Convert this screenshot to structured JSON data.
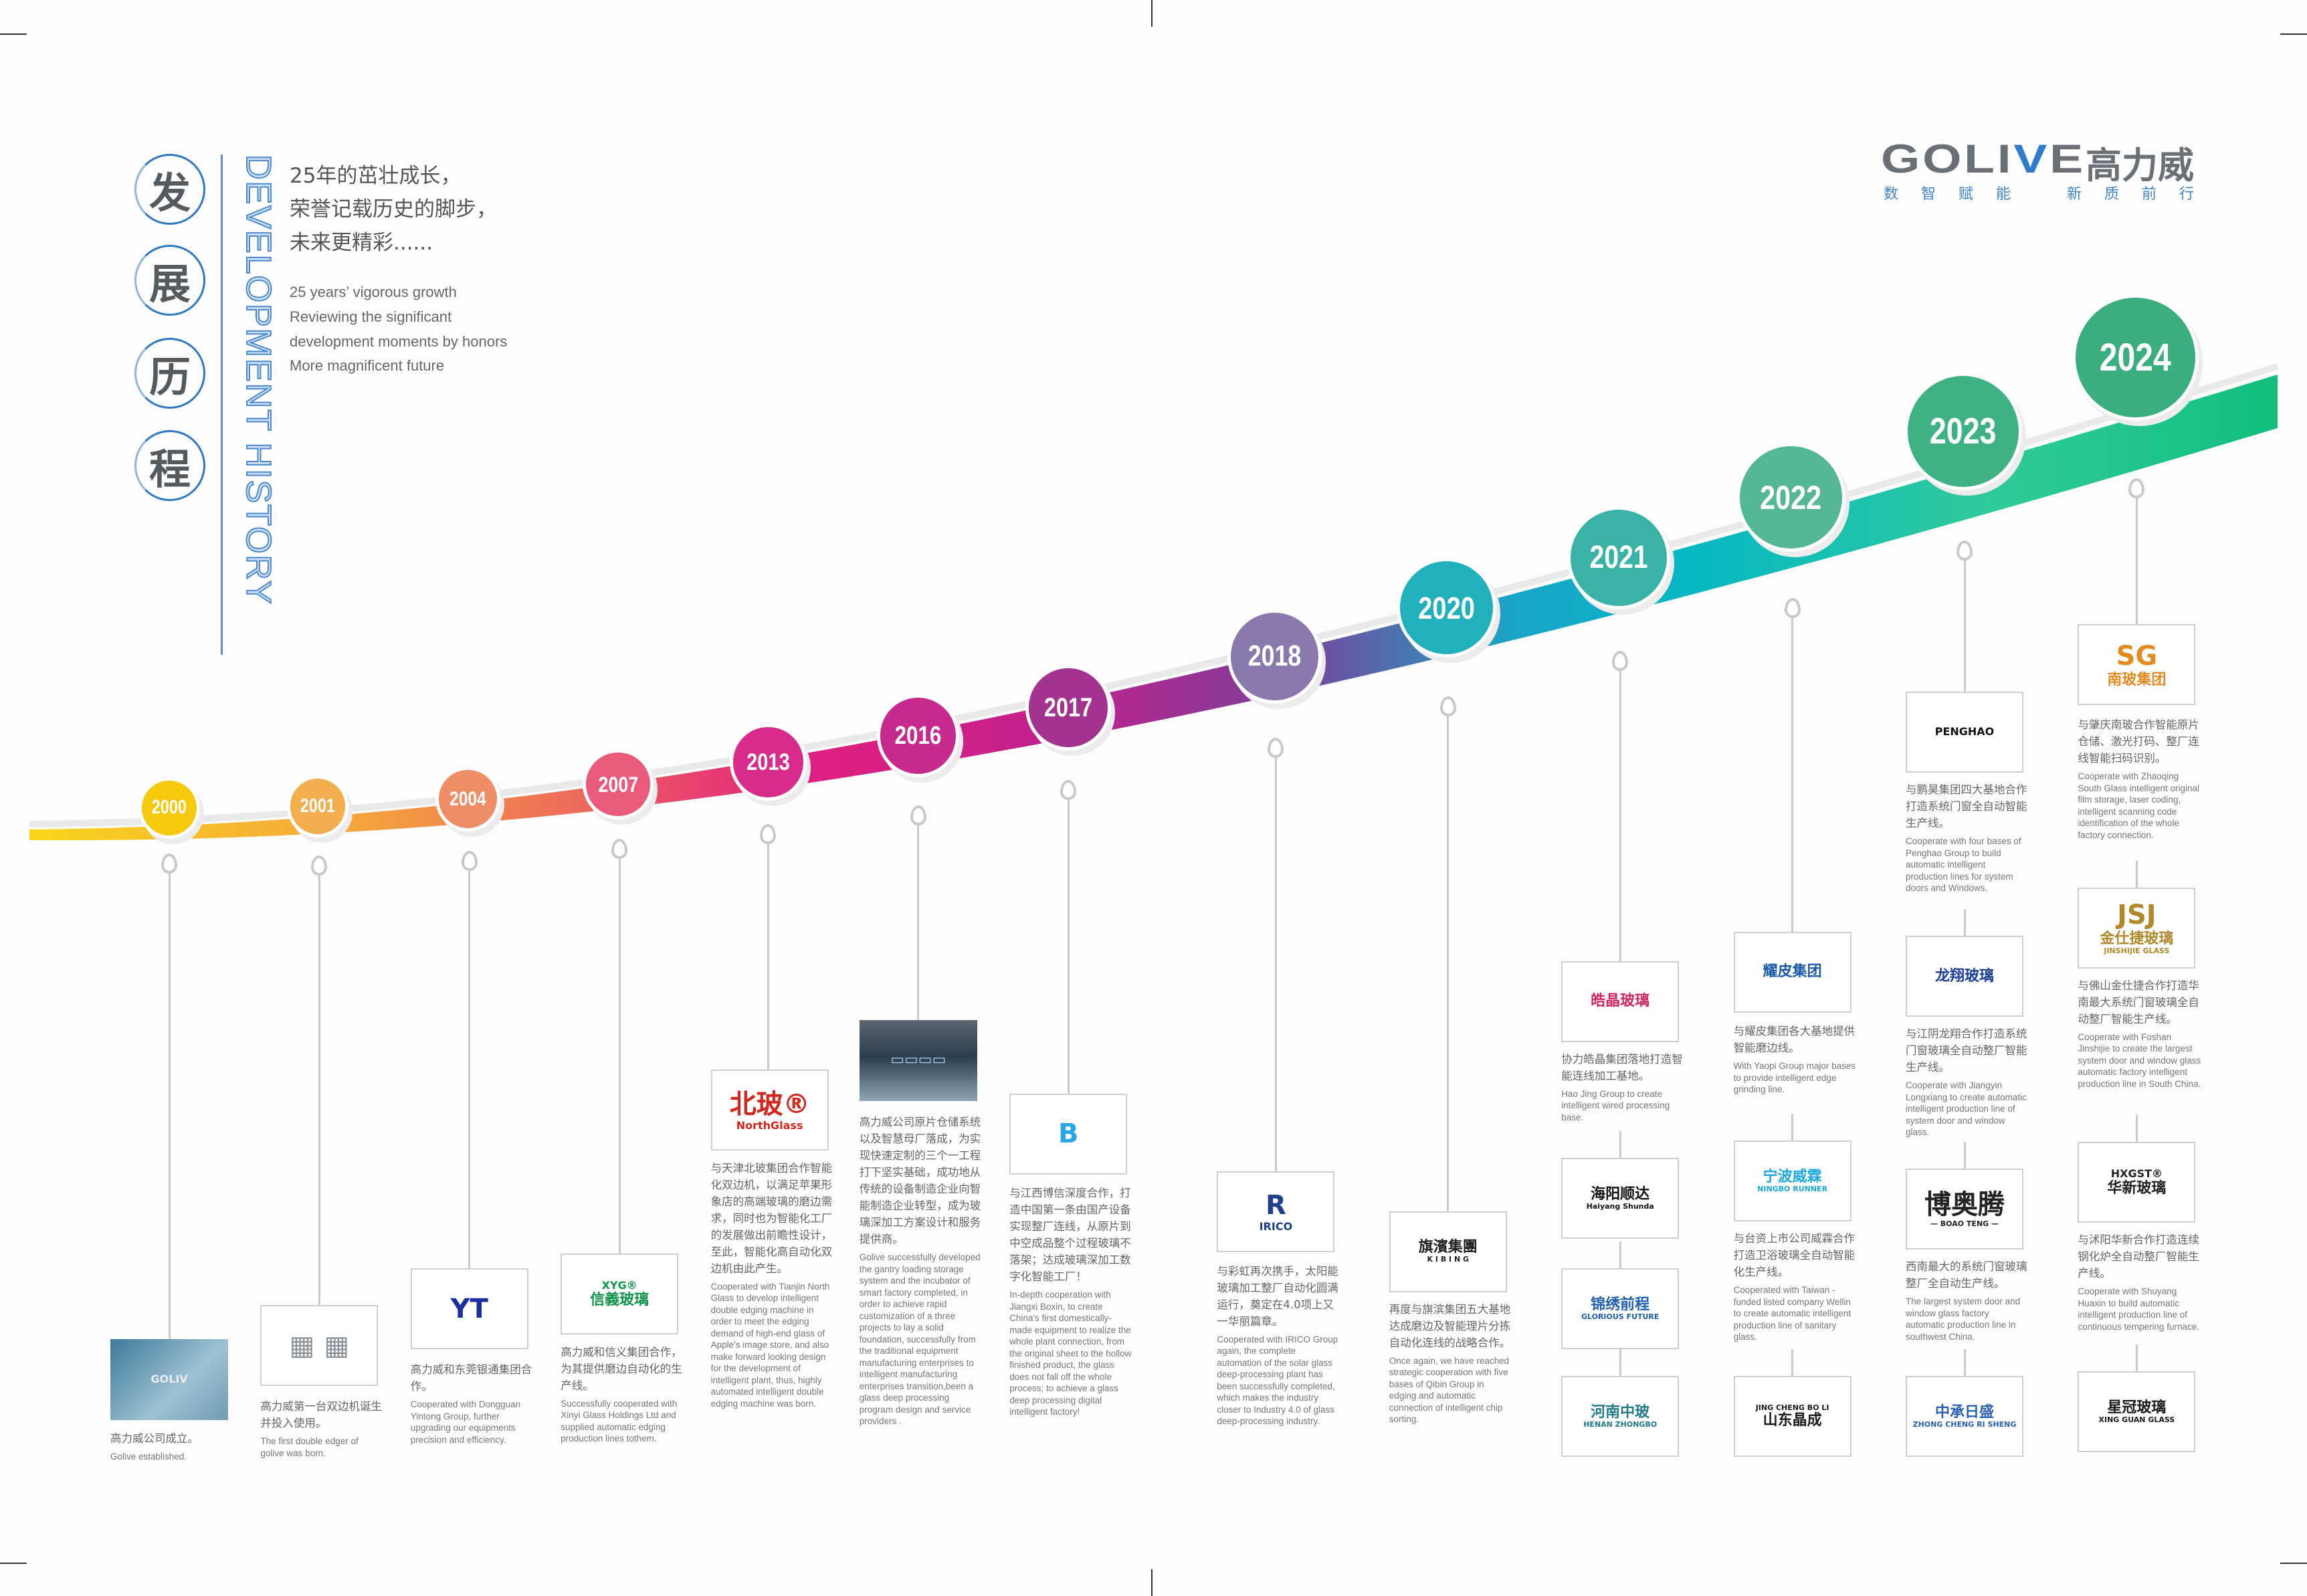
{
  "header": {
    "title_chars": [
      "发",
      "展",
      "历",
      "程"
    ],
    "title_en": "DEVELOPMENT HISTORY",
    "zh_lines": [
      "25年的茁壮成长，",
      "荣誉记载历史的脚步，",
      "未来更精彩......"
    ],
    "en_lines": [
      "25 years’  vigorous growth",
      "Reviewing the significant",
      "development moments by honors",
      "More magnificent future"
    ]
  },
  "brand": {
    "name_pre": "GOLI",
    "name_v": "V",
    "name_post": "E",
    "name_cn": "高力威",
    "slogan_left": "数智赋能",
    "slogan_right": "新质前行",
    "accent": "#2f7ccc"
  },
  "milestones": [
    {
      "year": "2000",
      "color": "#f6c90e",
      "entries": [
        {
          "logo": {
            "lines": [
              "GOLIV"
            ],
            "color": "#e8eef3",
            "photo": "linear-gradient(135deg,#3d7a9a,#9ec2d4 60%,#6f9bb1)"
          },
          "zh": "高力威公司成立。",
          "en": "Golive established."
        }
      ]
    },
    {
      "year": "2001",
      "color": "#f2ae4c",
      "entries": [
        {
          "logo": {
            "lines": [
              "▦ ▦"
            ],
            "color": "#8a9098"
          },
          "zh": "高力威第一台双边机诞生并投入使用。",
          "en": "The first double edger of golive was born."
        }
      ]
    },
    {
      "year": "2004",
      "color": "#ef8e66",
      "entries": [
        {
          "logo": {
            "lines": [
              "YT"
            ],
            "color": "#1b2fa3"
          },
          "zh": "高力威和东莞银通集团合作。",
          "en": "Cooperated with Dongguan Yintong Group, further upgrading our equipments precision and efficiency."
        }
      ]
    },
    {
      "year": "2007",
      "color": "#e95a7b",
      "entries": [
        {
          "logo": {
            "lines": [
              "XYG®",
              "信義玻璃"
            ],
            "color": "#11934a"
          },
          "zh": "高力威和信义集团合作，为其提供磨边自动化的生产线。",
          "en": "Successfully cooperated with Xinyi Glass Holdings Ltd and supplied automatic edging production lines tothem."
        }
      ]
    },
    {
      "year": "2013",
      "color": "#d82b8b",
      "entries": [
        {
          "logo": {
            "lines": [
              "北玻®",
              "NorthGlass"
            ],
            "color": "#d3261f"
          },
          "zh": "与天津北玻集团合作智能化双边机，以满足苹果形象店的高端玻璃的磨边需求，同时也为智能化工厂的发展做出前瞻性设计，至此，智能化高自动化双边机由此产生。",
          "en": "Cooperated with Tianjin North Glass to develop intelligent double edging machine in order to meet the edging demand of high-end glass of Apple's image store, and also make forward looking design for the development of intelligent plant, thus, highly automated intelligent double edging machine was born."
        }
      ]
    },
    {
      "year": "2016",
      "color": "#c62a8f",
      "entries": [
        {
          "logo": {
            "lines": [
              "▭▭▭▭"
            ],
            "color": "#9fd0ee",
            "photo": "linear-gradient(180deg,#5b6670,#2c3d4c 45%,#8fa3b2)"
          },
          "zh": "高力威公司原片仓储系统以及智慧母厂落成，为实现快速定制的三个一工程打下坚实基础，成功地从传统的设备制造企业向智能制造企业转型，成为玻璃深加工方案设计和服务提供商。",
          "en": "Golive successfully developed the gantry loading storage system and the incubator of smart factory completed, in order to achieve rapid customization of a three projects to lay a solid foundation, successfully from the traditional equipment manufacturing enterprises to intelligent manufacturing enterprises transition,been a glass deep processing program design and service providers ."
        }
      ]
    },
    {
      "year": "2017",
      "color": "#a2338f",
      "entries": [
        {
          "logo": {
            "lines": [
              "B"
            ],
            "color": "#27a7e6"
          },
          "zh": "与江西博信深度合作，打造中国第一条由国产设备实现整厂连线，从原片到中空成品整个过程玻璃不落架；达成玻璃深加工数字化智能工厂！",
          "en": "In-depth cooperation with Jiangxi Boxin, to create China's first domestically-made equipment to realize the whole plant connection, from the original sheet to the hollow finished product, the glass does not fall off the whole process; to achieve a glass deep processing digital intelligent factory!"
        }
      ]
    },
    {
      "year": "2018",
      "color": "#8a79ad",
      "entries": [
        {
          "logo": {
            "lines": [
              "R",
              "IRICO"
            ],
            "color": "#1d3f8c"
          },
          "zh": "与彩虹再次携手，太阳能玻璃加工整厂自动化圆满运行，奠定在4.0项上又一华丽篇章。",
          "en": "Cooperated with IRICO Group again, the complete automation of the solar glass deep-processing plant has been successfully completed, which makes the industry closer to Industry 4.0 of glass deep-processing industry."
        }
      ]
    },
    {
      "year": "2020",
      "color": "#20b1bc",
      "entries": [
        {
          "logo": {
            "lines": [
              "旗濱集團",
              "K I B I N G"
            ],
            "color": "#222"
          },
          "zh": "再度与旗滨集团五大基地达成磨边及智能理片分拣自动化连线的战略合作。",
          "en": "Once again, we have reached strategic cooperation with five bases of Qibin Group in edging and automatic connection of intelligent chip sorting."
        }
      ]
    },
    {
      "year": "2021",
      "color": "#39b3a5",
      "entries": [
        {
          "logo": {
            "lines": [
              "皓晶玻璃"
            ],
            "color": "#d0255f"
          },
          "zh": "协力皓晶集团落地打造智能连线加工基地。",
          "en": "Hao Jing Group to create intelligent wired processing base."
        },
        {
          "logo": {
            "lines": [
              "海阳顺达",
              "Haiyang Shunda"
            ],
            "color": "#111"
          }
        },
        {
          "logo": {
            "lines": [
              "锦绣前程",
              "GLORIOUS FUTURE"
            ],
            "color": "#1f5fb0"
          }
        },
        {
          "logo": {
            "lines": [
              "河南中玻",
              "HENAN ZHONGBO"
            ],
            "color": "#1f7c86"
          }
        }
      ]
    },
    {
      "year": "2022",
      "color": "#55b797",
      "entries": [
        {
          "logo": {
            "lines": [
              "耀皮集团"
            ],
            "color": "#1a5aa8"
          },
          "zh": "与耀皮集团各大基地提供智能磨边线。",
          "en": "With Yaopi Group major bases to provide intelligent edge grinding line."
        },
        {
          "logo": {
            "lines": [
              "宁波威霖",
              "NINGBO RUNNER"
            ],
            "color": "#1aa8e0"
          },
          "zh": "与台资上市公司威霖合作打造卫浴玻璃全自动智能化生产线。",
          "en": "Cooperated with Taiwan - funded listed company Wellin to create automatic intelligent production line of sanitary glass."
        },
        {
          "logo": {
            "lines": [
              "JING CHENG BO LI",
              "山东晶成"
            ],
            "color": "#1a1a1a"
          }
        }
      ]
    },
    {
      "year": "2023",
      "color": "#3fb283",
      "entries": [
        {
          "logo": {
            "lines": [
              "PENGHAO"
            ],
            "color": "#111"
          },
          "zh": "与鹏昊集团四大基地合作打造系统门窗全自动智能生产线。",
          "en": "Cooperate with four bases of Penghao Group to build automatic intelligent production lines for system doors and Windows."
        },
        {
          "logo": {
            "lines": [
              "龙翔玻璃"
            ],
            "color": "#1d3f9c"
          },
          "zh": "与江阴龙翔合作打造系统门窗玻璃全自动整厂智能生产线。",
          "en": "Cooperate with Jiangyin Longxiang to create automatic intelligent production line of system door and window glass."
        },
        {
          "logo": {
            "lines": [
              "博奥腾",
              "— BOAO TENG —"
            ],
            "color": "#222"
          },
          "zh": "西南最大的系统门窗玻璃整厂全自动生产线。",
          "en": "The largest system door and window glass factory automatic production line in southwest China."
        },
        {
          "logo": {
            "lines": [
              "中承日盛",
              "ZHONG CHENG RI SHENG"
            ],
            "color": "#2a5fb8"
          }
        }
      ]
    },
    {
      "year": "2024",
      "color": "#3aae7c",
      "entries": [
        {
          "logo": {
            "lines": [
              "SG",
              "南玻集团"
            ],
            "color": "#e48a22"
          },
          "zh": "与肇庆南玻合作智能原片仓储、激光打码、整厂连线智能扫码识别。",
          "en": "Cooperate with Zhaoqing South Glass intelligent original film storage, laser coding, intelligent scanning code identification of the whole factory connection."
        },
        {
          "logo": {
            "lines": [
              "JSJ",
              "金仕捷玻璃",
              "JINSHIJIE GLASS"
            ],
            "color": "#b08a2a"
          },
          "zh": "与佛山金仕捷合作打造华南最大系统门窗玻璃全自动整厂智能生产线。",
          "en": "Cooperate with Foshan Jinshijie to create the largest system door and window glass automatic factory intelligent production line in South China."
        },
        {
          "logo": {
            "lines": [
              "HXGST®",
              "华新玻璃"
            ],
            "color": "#222"
          },
          "zh": "与沭阳华新合作打造连续钢化炉全自动整厂智能生产线。",
          "en": "Cooperate with Shuyang Huaxin to build automatic intelligent production line of continuous tempering furnace."
        },
        {
          "logo": {
            "lines": [
              "星冠玻璃",
              "XING GUAN GLASS"
            ],
            "color": "#1a1a1a"
          }
        }
      ]
    }
  ]
}
